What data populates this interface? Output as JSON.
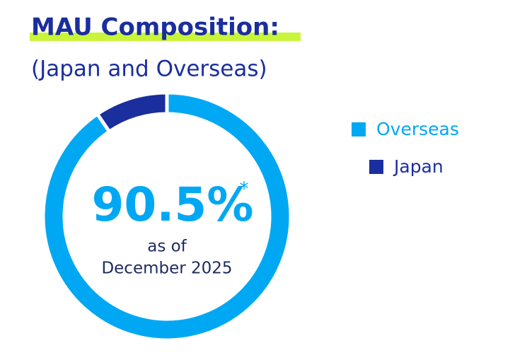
{
  "chart_data": {
    "type": "donut",
    "title": "MAU Composition:",
    "subtitle": "(Japan and Overseas)",
    "categories": [
      "Overseas",
      "Japan"
    ],
    "values": [
      90.5,
      9.5
    ],
    "value_labels": [
      "90.5%",
      null
    ],
    "colors": [
      "#00a8f3",
      "#1b2e9e"
    ],
    "annotation_mark": "*",
    "center_text": [
      "as of",
      "December 2025"
    ],
    "legend": "right"
  }
}
